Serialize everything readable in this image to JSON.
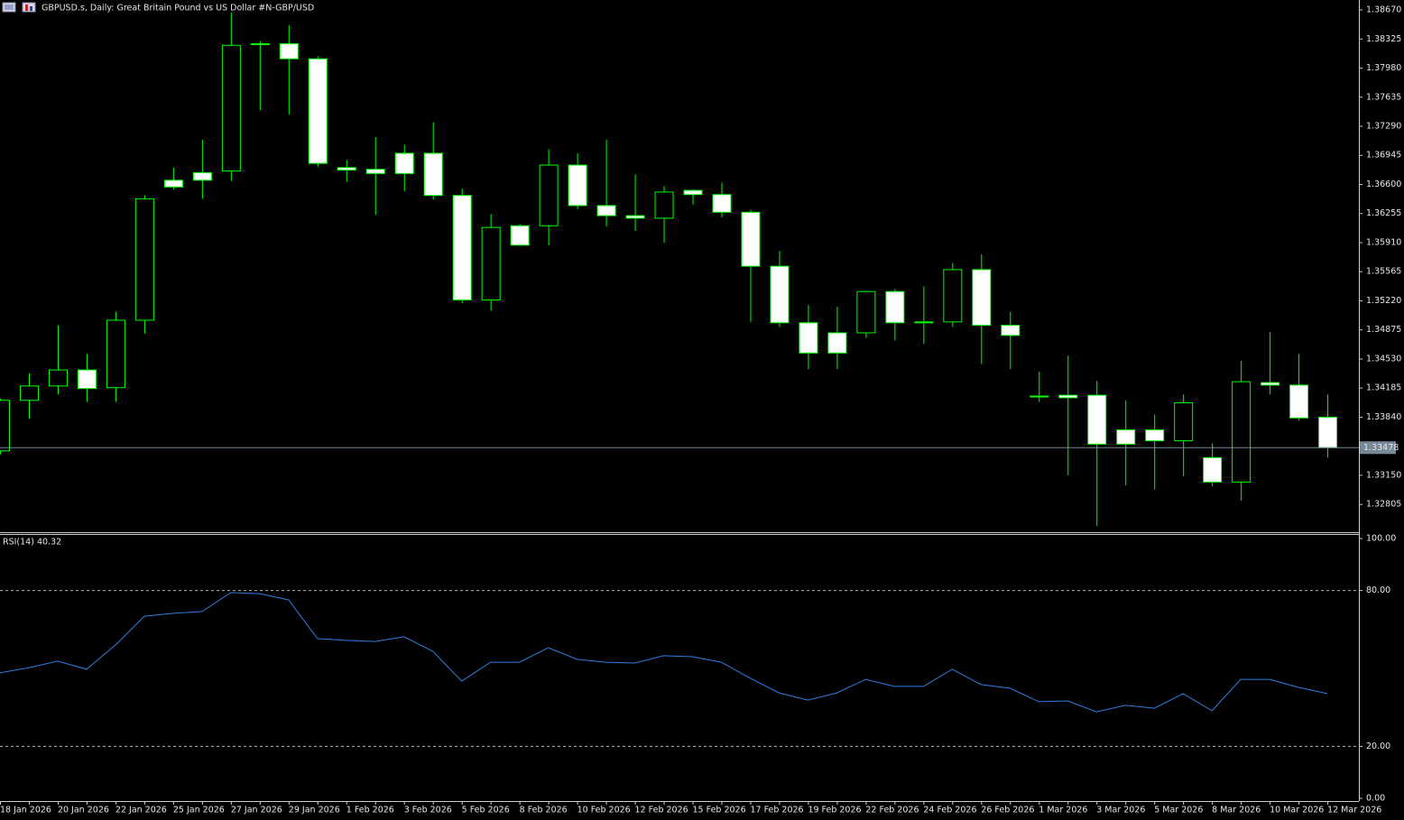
{
  "chart_data": [
    {
      "type": "candlestick",
      "title": "GBPUSD.s, Daily:  Great Britain Pound vs US Dollar #N-GBP/USD",
      "categories": [
        "18 Jan 2026",
        null,
        "20 Jan 2026",
        null,
        "22 Jan 2026",
        null,
        "25 Jan 2026",
        null,
        "27 Jan 2026",
        null,
        "29 Jan 2026",
        null,
        "1 Feb 2026",
        null,
        "3 Feb 2026",
        null,
        "5 Feb 2026",
        null,
        "8 Feb 2026",
        null,
        "10 Feb 2026",
        null,
        "12 Feb 2026",
        null,
        "15 Feb 2026",
        null,
        "17 Feb 2026",
        null,
        "19 Feb 2026",
        null,
        "22 Feb 2026",
        null,
        "24 Feb 2026",
        null,
        "26 Feb 2026",
        null,
        "1 Mar 2026",
        null,
        "3 Mar 2026",
        null,
        "5 Mar 2026",
        null,
        "8 Mar 2026",
        null,
        "10 Mar 2026",
        null,
        "12 Mar 2026"
      ],
      "open": [
        1.3344,
        1.3404,
        1.3421,
        1.344,
        1.3419,
        1.3499,
        1.3665,
        1.3674,
        1.3676,
        1.3827,
        1.3827,
        1.3809,
        1.368,
        1.3678,
        1.3697,
        1.3697,
        1.3647,
        1.3523,
        1.3611,
        1.3611,
        1.3683,
        1.3635,
        1.3623,
        1.362,
        1.3653,
        1.3648,
        1.3627,
        1.3563,
        1.3496,
        1.3484,
        1.3484,
        1.3533,
        1.3497,
        1.3497,
        1.3559,
        1.3493,
        1.3409,
        1.341,
        1.341,
        1.3369,
        1.3369,
        1.3356,
        1.3336,
        1.3307,
        1.3425,
        1.3422,
        1.3384
      ],
      "high": [
        1.3406,
        1.3436,
        1.3493,
        1.3459,
        1.3509,
        1.3647,
        1.368,
        1.3713,
        1.3864,
        1.383,
        1.3849,
        1.3812,
        1.3689,
        1.3716,
        1.3707,
        1.3734,
        1.3655,
        1.3625,
        1.3613,
        1.3702,
        1.3697,
        1.3713,
        1.3672,
        1.3658,
        1.3654,
        1.3662,
        1.363,
        1.3581,
        1.3517,
        1.3515,
        1.3534,
        1.3536,
        1.3539,
        1.3567,
        1.3577,
        1.3509,
        1.3438,
        1.3457,
        1.3427,
        1.3404,
        1.3387,
        1.3411,
        1.3353,
        1.3451,
        1.3485,
        1.3459,
        1.3411
      ],
      "low": [
        1.334,
        1.3382,
        1.3411,
        1.3402,
        1.3402,
        1.3483,
        1.3654,
        1.3643,
        1.3664,
        1.3748,
        1.3743,
        1.3681,
        1.3663,
        1.3624,
        1.3652,
        1.3642,
        1.3519,
        1.351,
        1.3588,
        1.3588,
        1.3631,
        1.361,
        1.3605,
        1.3591,
        1.3636,
        1.3621,
        1.3497,
        1.3491,
        1.3441,
        1.3441,
        1.3478,
        1.3475,
        1.3471,
        1.3491,
        1.3447,
        1.3441,
        1.3402,
        1.3315,
        1.3255,
        1.3303,
        1.3298,
        1.3314,
        1.3302,
        1.3285,
        1.3411,
        1.338,
        1.3336
      ],
      "close": [
        1.3404,
        1.3421,
        1.344,
        1.3418,
        1.3499,
        1.3643,
        1.3657,
        1.3665,
        1.3825,
        1.3827,
        1.3809,
        1.3685,
        1.3677,
        1.3673,
        1.3673,
        1.3647,
        1.3523,
        1.3609,
        1.3588,
        1.3683,
        1.3635,
        1.3623,
        1.362,
        1.3651,
        1.3648,
        1.3627,
        1.3563,
        1.3496,
        1.346,
        1.346,
        1.3533,
        1.3496,
        1.3497,
        1.3559,
        1.3493,
        1.3481,
        1.3409,
        1.3407,
        1.3352,
        1.3352,
        1.3356,
        1.3401,
        1.3307,
        1.3426,
        1.3422,
        1.3383,
        1.33478
      ],
      "up_color": "#000000",
      "down_color": "#ffffff",
      "wick_color": "#00ff00",
      "last_price": 1.33478,
      "last_price_color": "#778899",
      "ylim": [
        1.32475,
        1.38788
      ],
      "yticks": [
        {
          "value": 1.3867,
          "label": "1.38670"
        },
        {
          "value": 1.38325,
          "label": "1.38325"
        },
        {
          "value": 1.3798,
          "label": "1.37980"
        },
        {
          "value": 1.37635,
          "label": "1.37635"
        },
        {
          "value": 1.3729,
          "label": "1.37290"
        },
        {
          "value": 1.36945,
          "label": "1.36945"
        },
        {
          "value": 1.366,
          "label": "1.36600"
        },
        {
          "value": 1.36255,
          "label": "1.36255"
        },
        {
          "value": 1.3591,
          "label": "1.35910"
        },
        {
          "value": 1.35565,
          "label": "1.35565"
        },
        {
          "value": 1.3522,
          "label": "1.35220"
        },
        {
          "value": 1.34875,
          "label": "1.34875"
        },
        {
          "value": 1.3453,
          "label": "1.34530"
        },
        {
          "value": 1.34185,
          "label": "1.34185"
        },
        {
          "value": 1.3384,
          "label": "1.33840"
        },
        {
          "value": 1.3315,
          "label": "1.33150"
        },
        {
          "value": 1.32805,
          "label": "1.32805"
        }
      ]
    },
    {
      "type": "line",
      "title": "RSI(14) 40.32",
      "values": [
        48.3,
        50.3,
        52.8,
        49.7,
        59.0,
        70.1,
        71.2,
        71.9,
        79.2,
        78.8,
        76.4,
        61.5,
        60.8,
        60.4,
        62.2,
        56.6,
        45.1,
        52.4,
        52.4,
        58.0,
        53.5,
        52.4,
        52.1,
        54.9,
        54.5,
        52.4,
        46.2,
        40.6,
        37.8,
        40.6,
        45.8,
        43.1,
        43.1,
        49.7,
        43.8,
        42.4,
        37.2,
        37.5,
        33.3,
        35.8,
        34.7,
        40.3,
        33.7,
        45.8,
        45.8,
        42.7,
        40.32
      ],
      "color": "#2f7fe0",
      "levels": [
        80,
        20
      ],
      "ylim": [
        -1.04,
        101.39
      ],
      "yticks": [
        {
          "value": 100,
          "label": "100.00"
        },
        {
          "value": 80,
          "label": "80.00"
        },
        {
          "value": 20,
          "label": "20.00"
        },
        {
          "value": 0,
          "label": "0.00"
        }
      ]
    }
  ]
}
